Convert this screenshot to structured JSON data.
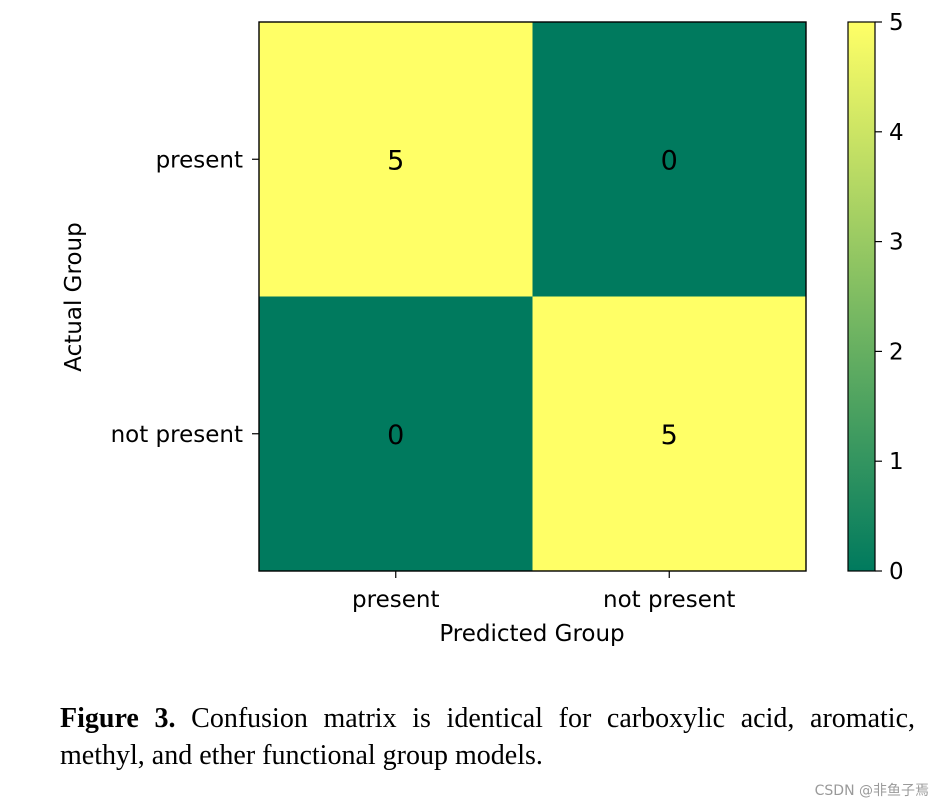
{
  "chart_data": {
    "type": "heatmap",
    "x_categories": [
      "present",
      "not present"
    ],
    "y_categories": [
      "present",
      "not present"
    ],
    "values": [
      [
        5,
        0
      ],
      [
        0,
        5
      ]
    ],
    "xlabel": "Predicted Group",
    "ylabel": "Actual Group",
    "colorbar": {
      "min": 0,
      "max": 5,
      "ticks": [
        "0",
        "1",
        "2",
        "3",
        "4",
        "5"
      ]
    },
    "colors": {
      "low": "#007a5e",
      "high": "#ffff66"
    }
  },
  "caption": {
    "label": "Figure 3.",
    "text": "Confusion matrix is identical for carboxylic acid, aromatic, methyl, and ether functional group models."
  },
  "watermark": "CSDN @非鱼子焉"
}
